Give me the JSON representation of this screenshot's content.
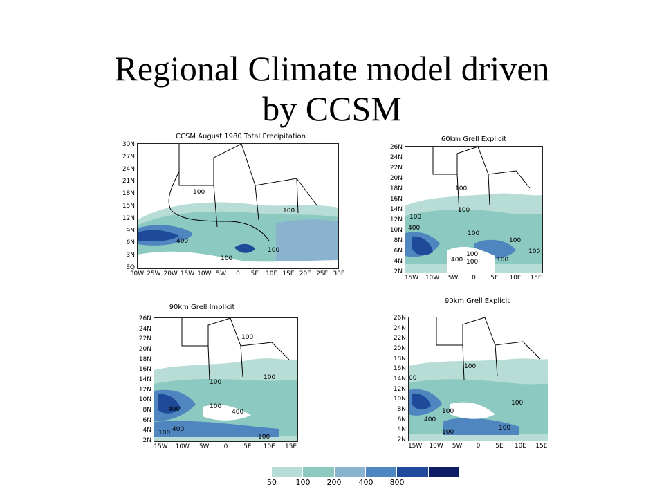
{
  "slide": {
    "title_line1": "Regional Climate model driven",
    "title_line2": "by CCSM"
  },
  "colors": {
    "level_50": "#b8ddd6",
    "level_100": "#8cc9c0",
    "level_200": "#8ab3d0",
    "level_400": "#4f86bf",
    "level_800": "#1f4a9a",
    "level_top": "#0e1a66"
  },
  "panels": [
    {
      "title": "CCSM August 1980 Total Precipitation",
      "y_ticks": [
        "30N",
        "27N",
        "24N",
        "21N",
        "18N",
        "15N",
        "12N",
        "9N",
        "6N",
        "3N",
        "EQ"
      ],
      "x_ticks": [
        "30W",
        "25W",
        "20W",
        "15W",
        "10W",
        "5W",
        "0",
        "5E",
        "10E",
        "15E",
        "20E",
        "25E",
        "30E"
      ],
      "contour_labels": [
        "100",
        "100",
        "400",
        "100",
        "100"
      ]
    },
    {
      "title": "60km Grell Explicit",
      "y_ticks": [
        "26N",
        "24N",
        "22N",
        "20N",
        "18N",
        "16N",
        "14N",
        "12N",
        "10N",
        "8N",
        "6N",
        "4N",
        "2N"
      ],
      "x_ticks": [
        "15W",
        "10W",
        "5W",
        "0",
        "5E",
        "10E",
        "15E"
      ],
      "contour_labels": [
        "100",
        "100",
        "400",
        "100",
        "100",
        "100",
        "400",
        "100",
        "100",
        "100",
        "100"
      ]
    },
    {
      "title": "90km Grell Implicit",
      "y_ticks": [
        "26N",
        "24N",
        "22N",
        "20N",
        "18N",
        "16N",
        "14N",
        "12N",
        "10N",
        "8N",
        "6N",
        "4N",
        "2N"
      ],
      "x_ticks": [
        "15W",
        "10W",
        "5W",
        "0",
        "5E",
        "10E",
        "15E"
      ],
      "contour_labels": [
        "100",
        "100",
        "100",
        "100",
        "400",
        "400",
        "400",
        "100",
        "100"
      ]
    },
    {
      "title": "90km Grell Explicit",
      "y_ticks": [
        "26N",
        "24N",
        "22N",
        "20N",
        "18N",
        "16N",
        "14N",
        "12N",
        "10N",
        "8N",
        "6N",
        "4N",
        "2N"
      ],
      "x_ticks": [
        "15W",
        "10W",
        "5W",
        "0",
        "5E",
        "10E",
        "15E"
      ],
      "contour_labels": [
        "100",
        "00",
        "100",
        "100",
        "400",
        "100",
        "100"
      ]
    }
  ],
  "colorbar": {
    "labels": [
      "50",
      "100",
      "200",
      "400",
      "800"
    ]
  }
}
